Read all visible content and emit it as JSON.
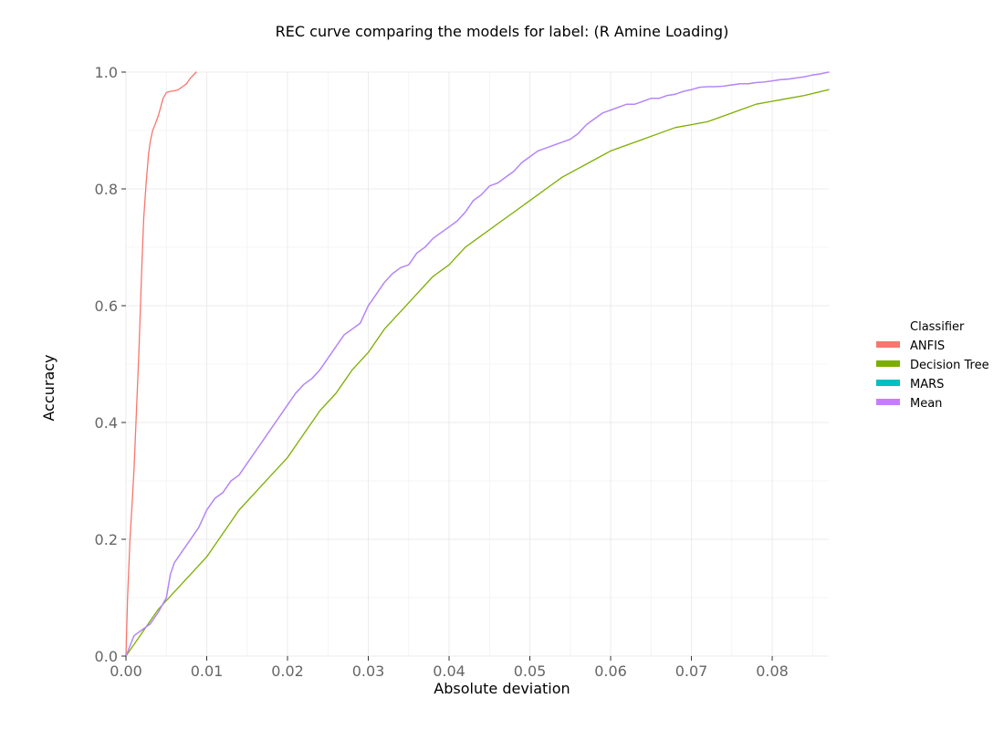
{
  "chart_data": {
    "type": "line",
    "title": "REC curve comparing the models for label: (R Amine Loading)",
    "xlabel": "Absolute deviation",
    "ylabel": "Accuracy",
    "xlim": [
      0,
      0.087
    ],
    "ylim": [
      0,
      1.0
    ],
    "x_ticks": [
      "0.00",
      "0.01",
      "0.02",
      "0.03",
      "0.04",
      "0.05",
      "0.06",
      "0.07",
      "0.08"
    ],
    "y_ticks": [
      "0.0",
      "0.2",
      "0.4",
      "0.6",
      "0.8",
      "1.0"
    ],
    "grid": true,
    "legend": {
      "title": "Classifier",
      "position": "right"
    },
    "series": [
      {
        "name": "ANFIS",
        "color": "#f8766d",
        "x": [
          0,
          0.0002,
          0.0005,
          0.0008,
          0.001,
          0.0013,
          0.0016,
          0.0018,
          0.002,
          0.0022,
          0.0025,
          0.0028,
          0.003,
          0.0033,
          0.0036,
          0.004,
          0.0043,
          0.0046,
          0.005,
          0.0055,
          0.006,
          0.0065,
          0.007,
          0.0075,
          0.008,
          0.0087
        ],
        "y": [
          0,
          0.1,
          0.2,
          0.27,
          0.32,
          0.42,
          0.52,
          0.6,
          0.68,
          0.75,
          0.81,
          0.86,
          0.88,
          0.9,
          0.91,
          0.925,
          0.94,
          0.955,
          0.965,
          0.967,
          0.968,
          0.97,
          0.975,
          0.98,
          0.99,
          1.0
        ]
      },
      {
        "name": "Decision Tree",
        "color": "#7cae00",
        "x": [
          0,
          0.002,
          0.004,
          0.006,
          0.008,
          0.01,
          0.012,
          0.014,
          0.016,
          0.018,
          0.02,
          0.022,
          0.024,
          0.026,
          0.028,
          0.03,
          0.032,
          0.034,
          0.036,
          0.038,
          0.04,
          0.042,
          0.044,
          0.046,
          0.048,
          0.05,
          0.052,
          0.054,
          0.056,
          0.058,
          0.06,
          0.062,
          0.064,
          0.066,
          0.068,
          0.07,
          0.072,
          0.074,
          0.076,
          0.078,
          0.08,
          0.082,
          0.084,
          0.087
        ],
        "y": [
          0,
          0.04,
          0.08,
          0.11,
          0.14,
          0.17,
          0.21,
          0.25,
          0.28,
          0.31,
          0.34,
          0.38,
          0.42,
          0.45,
          0.49,
          0.52,
          0.56,
          0.59,
          0.62,
          0.65,
          0.67,
          0.7,
          0.72,
          0.74,
          0.76,
          0.78,
          0.8,
          0.82,
          0.835,
          0.85,
          0.865,
          0.875,
          0.885,
          0.895,
          0.905,
          0.91,
          0.915,
          0.925,
          0.935,
          0.945,
          0.95,
          0.955,
          0.96,
          0.97
        ]
      },
      {
        "name": "MARS",
        "color": "#00bfc4",
        "x": [
          0,
          0.001,
          0.002,
          0.003,
          0.004,
          0.005,
          0.0055,
          0.006,
          0.007,
          0.008,
          0.009,
          0.01,
          0.011,
          0.012,
          0.013,
          0.014,
          0.015,
          0.016,
          0.017,
          0.018,
          0.019,
          0.02,
          0.021,
          0.022,
          0.023,
          0.024,
          0.025,
          0.026,
          0.027,
          0.028,
          0.029,
          0.03,
          0.031,
          0.032,
          0.033,
          0.034,
          0.035,
          0.036,
          0.037,
          0.038,
          0.039,
          0.04,
          0.041,
          0.042,
          0.043,
          0.044,
          0.045,
          0.046,
          0.047,
          0.048,
          0.049,
          0.05,
          0.051,
          0.052,
          0.053,
          0.054,
          0.055,
          0.056,
          0.057,
          0.058,
          0.059,
          0.06,
          0.061,
          0.062,
          0.063,
          0.064,
          0.065,
          0.066,
          0.067,
          0.068,
          0.069,
          0.07,
          0.071,
          0.072,
          0.073,
          0.074,
          0.075,
          0.076,
          0.077,
          0.078,
          0.079,
          0.08,
          0.081,
          0.082,
          0.083,
          0.084,
          0.085,
          0.086,
          0.087
        ],
        "y": [
          0,
          0.035,
          0.045,
          0.055,
          0.075,
          0.1,
          0.14,
          0.16,
          0.18,
          0.2,
          0.22,
          0.25,
          0.27,
          0.28,
          0.3,
          0.31,
          0.33,
          0.35,
          0.37,
          0.39,
          0.41,
          0.43,
          0.45,
          0.465,
          0.475,
          0.49,
          0.51,
          0.53,
          0.55,
          0.56,
          0.57,
          0.6,
          0.62,
          0.64,
          0.655,
          0.665,
          0.67,
          0.69,
          0.7,
          0.715,
          0.725,
          0.735,
          0.745,
          0.76,
          0.78,
          0.79,
          0.805,
          0.81,
          0.82,
          0.83,
          0.845,
          0.855,
          0.865,
          0.87,
          0.875,
          0.88,
          0.885,
          0.895,
          0.91,
          0.92,
          0.93,
          0.935,
          0.94,
          0.945,
          0.945,
          0.95,
          0.955,
          0.955,
          0.96,
          0.962,
          0.967,
          0.97,
          0.974,
          0.975,
          0.975,
          0.976,
          0.978,
          0.98,
          0.98,
          0.982,
          0.983,
          0.985,
          0.987,
          0.988,
          0.99,
          0.992,
          0.995,
          0.997,
          1.0
        ]
      },
      {
        "name": "Mean",
        "color": "#c77cff",
        "x": [
          0,
          0.001,
          0.002,
          0.003,
          0.004,
          0.005,
          0.0055,
          0.006,
          0.007,
          0.008,
          0.009,
          0.01,
          0.011,
          0.012,
          0.013,
          0.014,
          0.015,
          0.016,
          0.017,
          0.018,
          0.019,
          0.02,
          0.021,
          0.022,
          0.023,
          0.024,
          0.025,
          0.026,
          0.027,
          0.028,
          0.029,
          0.03,
          0.031,
          0.032,
          0.033,
          0.034,
          0.035,
          0.036,
          0.037,
          0.038,
          0.039,
          0.04,
          0.041,
          0.042,
          0.043,
          0.044,
          0.045,
          0.046,
          0.047,
          0.048,
          0.049,
          0.05,
          0.051,
          0.052,
          0.053,
          0.054,
          0.055,
          0.056,
          0.057,
          0.058,
          0.059,
          0.06,
          0.061,
          0.062,
          0.063,
          0.064,
          0.065,
          0.066,
          0.067,
          0.068,
          0.069,
          0.07,
          0.071,
          0.072,
          0.073,
          0.074,
          0.075,
          0.076,
          0.077,
          0.078,
          0.079,
          0.08,
          0.081,
          0.082,
          0.083,
          0.084,
          0.085,
          0.086,
          0.087
        ],
        "y": [
          0,
          0.035,
          0.045,
          0.055,
          0.075,
          0.1,
          0.14,
          0.16,
          0.18,
          0.2,
          0.22,
          0.25,
          0.27,
          0.28,
          0.3,
          0.31,
          0.33,
          0.35,
          0.37,
          0.39,
          0.41,
          0.43,
          0.45,
          0.465,
          0.475,
          0.49,
          0.51,
          0.53,
          0.55,
          0.56,
          0.57,
          0.6,
          0.62,
          0.64,
          0.655,
          0.665,
          0.67,
          0.69,
          0.7,
          0.715,
          0.725,
          0.735,
          0.745,
          0.76,
          0.78,
          0.79,
          0.805,
          0.81,
          0.82,
          0.83,
          0.845,
          0.855,
          0.865,
          0.87,
          0.875,
          0.88,
          0.885,
          0.895,
          0.91,
          0.92,
          0.93,
          0.935,
          0.94,
          0.945,
          0.945,
          0.95,
          0.955,
          0.955,
          0.96,
          0.962,
          0.967,
          0.97,
          0.974,
          0.975,
          0.975,
          0.976,
          0.978,
          0.98,
          0.98,
          0.982,
          0.983,
          0.985,
          0.987,
          0.988,
          0.99,
          0.992,
          0.995,
          0.997,
          1.0
        ]
      }
    ]
  }
}
